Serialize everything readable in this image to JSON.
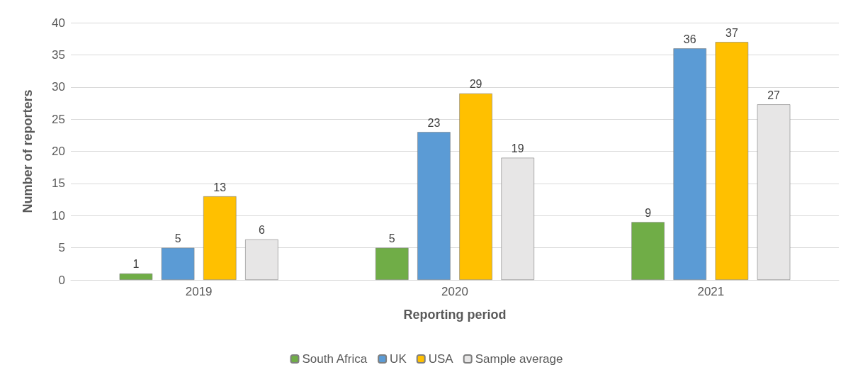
{
  "chart_data": {
    "type": "bar",
    "xlabel": "Reporting period",
    "ylabel": "Number of reporters",
    "categories": [
      "2019",
      "2020",
      "2021"
    ],
    "series": [
      {
        "name": "South Africa",
        "color": "#70ad47",
        "values": [
          1,
          5,
          9
        ]
      },
      {
        "name": "UK",
        "color": "#5b9bd5",
        "values": [
          5,
          23,
          36
        ]
      },
      {
        "name": "USA",
        "color": "#ffc000",
        "values": [
          13,
          29,
          37
        ]
      },
      {
        "name": "Sample average",
        "color": "#e7e6e6",
        "values": [
          6.3,
          19,
          27.3
        ],
        "value_labels": [
          "6",
          "19",
          "27"
        ]
      }
    ],
    "data_labels": true,
    "ylim": [
      0,
      40
    ],
    "yticks": [
      0,
      5,
      10,
      15,
      20,
      25,
      30,
      35,
      40
    ],
    "grid": "y",
    "legend": "bottom"
  }
}
